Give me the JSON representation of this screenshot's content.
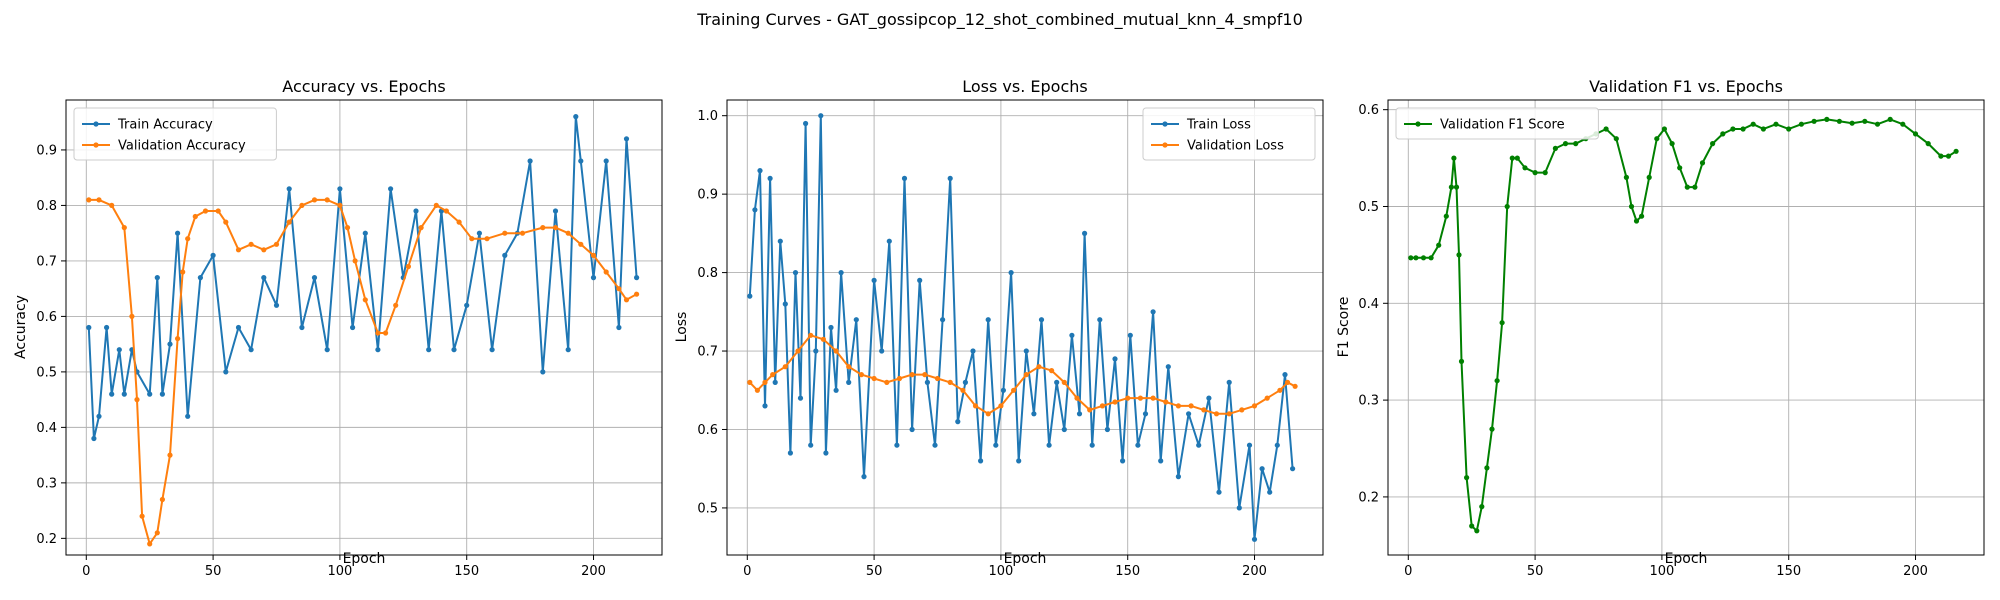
{
  "suptitle": "Training Curves - GAT_gossipcop_12_shot_combined_mutual_knn_4_smpf10",
  "colors": {
    "train": "#1f77b4",
    "validation": "#ff7f0e",
    "f1": "#008000",
    "grid": "#b0b0b0"
  },
  "chart_data": [
    {
      "type": "line",
      "title": "Accuracy vs. Epochs",
      "xlabel": "Epoch",
      "ylabel": "Accuracy",
      "xlim": [
        -8,
        227
      ],
      "ylim": [
        0.17,
        0.99
      ],
      "xticks": [
        0,
        50,
        100,
        150,
        200
      ],
      "yticks": [
        0.2,
        0.3,
        0.4,
        0.5,
        0.6,
        0.7,
        0.8,
        0.9
      ],
      "grid": true,
      "legend_position": "top-left",
      "series": [
        {
          "name": "Train Accuracy",
          "color": "#1f77b4",
          "x": [
            1,
            3,
            5,
            8,
            10,
            13,
            15,
            18,
            20,
            25,
            28,
            30,
            33,
            36,
            40,
            45,
            50,
            55,
            60,
            65,
            70,
            75,
            80,
            85,
            90,
            95,
            100,
            105,
            110,
            115,
            120,
            125,
            130,
            135,
            140,
            145,
            150,
            155,
            160,
            165,
            170,
            175,
            180,
            185,
            190,
            193,
            195,
            200,
            205,
            210,
            213,
            217
          ],
          "y": [
            0.58,
            0.38,
            0.42,
            0.58,
            0.46,
            0.54,
            0.46,
            0.54,
            0.5,
            0.46,
            0.67,
            0.46,
            0.55,
            0.75,
            0.42,
            0.67,
            0.71,
            0.5,
            0.58,
            0.54,
            0.67,
            0.62,
            0.83,
            0.58,
            0.67,
            0.54,
            0.83,
            0.58,
            0.75,
            0.54,
            0.83,
            0.67,
            0.79,
            0.54,
            0.79,
            0.54,
            0.62,
            0.75,
            0.54,
            0.71,
            0.75,
            0.88,
            0.5,
            0.79,
            0.54,
            0.96,
            0.88,
            0.67,
            0.88,
            0.58,
            0.92,
            0.67
          ]
        },
        {
          "name": "Validation Accuracy",
          "color": "#ff7f0e",
          "x": [
            1,
            5,
            10,
            15,
            18,
            20,
            22,
            25,
            28,
            30,
            33,
            36,
            38,
            40,
            43,
            47,
            52,
            55,
            60,
            65,
            70,
            75,
            80,
            85,
            90,
            95,
            100,
            103,
            106,
            110,
            115,
            118,
            122,
            127,
            132,
            138,
            142,
            147,
            152,
            158,
            165,
            172,
            180,
            185,
            190,
            195,
            200,
            205,
            210,
            213,
            217
          ],
          "y": [
            0.81,
            0.81,
            0.8,
            0.76,
            0.6,
            0.45,
            0.24,
            0.19,
            0.21,
            0.27,
            0.35,
            0.56,
            0.68,
            0.74,
            0.78,
            0.79,
            0.79,
            0.77,
            0.72,
            0.73,
            0.72,
            0.73,
            0.77,
            0.8,
            0.81,
            0.81,
            0.8,
            0.76,
            0.7,
            0.63,
            0.57,
            0.57,
            0.62,
            0.69,
            0.76,
            0.8,
            0.79,
            0.77,
            0.74,
            0.74,
            0.75,
            0.75,
            0.76,
            0.76,
            0.75,
            0.73,
            0.71,
            0.68,
            0.65,
            0.63,
            0.64
          ]
        }
      ]
    },
    {
      "type": "line",
      "title": "Loss vs. Epochs",
      "xlabel": "Epoch",
      "ylabel": "Loss",
      "xlim": [
        -8,
        227
      ],
      "ylim": [
        0.44,
        1.02
      ],
      "xticks": [
        0,
        50,
        100,
        150,
        200
      ],
      "yticks": [
        0.5,
        0.6,
        0.7,
        0.8,
        0.9,
        1.0
      ],
      "grid": true,
      "legend_position": "top-right",
      "series": [
        {
          "name": "Train Loss",
          "color": "#1f77b4",
          "x": [
            1,
            3,
            5,
            7,
            9,
            11,
            13,
            15,
            17,
            19,
            21,
            23,
            25,
            27,
            29,
            31,
            33,
            35,
            37,
            40,
            43,
            46,
            50,
            53,
            56,
            59,
            62,
            65,
            68,
            71,
            74,
            77,
            80,
            83,
            86,
            89,
            92,
            95,
            98,
            101,
            104,
            107,
            110,
            113,
            116,
            119,
            122,
            125,
            128,
            131,
            133,
            136,
            139,
            142,
            145,
            148,
            151,
            154,
            157,
            160,
            163,
            166,
            170,
            174,
            178,
            182,
            186,
            190,
            194,
            198,
            200,
            203,
            206,
            209,
            212,
            215
          ],
          "y": [
            0.77,
            0.88,
            0.93,
            0.63,
            0.92,
            0.66,
            0.84,
            0.76,
            0.57,
            0.8,
            0.64,
            0.99,
            0.58,
            0.7,
            1.0,
            0.57,
            0.73,
            0.65,
            0.8,
            0.66,
            0.74,
            0.54,
            0.79,
            0.7,
            0.84,
            0.58,
            0.92,
            0.6,
            0.79,
            0.66,
            0.58,
            0.74,
            0.92,
            0.61,
            0.66,
            0.7,
            0.56,
            0.74,
            0.58,
            0.65,
            0.8,
            0.56,
            0.7,
            0.62,
            0.74,
            0.58,
            0.66,
            0.6,
            0.72,
            0.62,
            0.85,
            0.58,
            0.74,
            0.6,
            0.69,
            0.56,
            0.72,
            0.58,
            0.62,
            0.75,
            0.56,
            0.68,
            0.54,
            0.62,
            0.58,
            0.64,
            0.52,
            0.66,
            0.5,
            0.58,
            0.46,
            0.55,
            0.52,
            0.58,
            0.67,
            0.55
          ]
        },
        {
          "name": "Validation Loss",
          "color": "#ff7f0e",
          "x": [
            1,
            4,
            7,
            10,
            15,
            20,
            25,
            30,
            35,
            40,
            45,
            50,
            55,
            60,
            65,
            70,
            75,
            80,
            85,
            90,
            95,
            100,
            105,
            110,
            115,
            120,
            125,
            130,
            135,
            140,
            145,
            150,
            155,
            160,
            165,
            170,
            175,
            180,
            185,
            190,
            195,
            200,
            205,
            210,
            213,
            216
          ],
          "y": [
            0.66,
            0.65,
            0.66,
            0.67,
            0.68,
            0.7,
            0.72,
            0.715,
            0.7,
            0.68,
            0.67,
            0.665,
            0.66,
            0.665,
            0.67,
            0.67,
            0.665,
            0.66,
            0.65,
            0.63,
            0.62,
            0.63,
            0.65,
            0.67,
            0.68,
            0.675,
            0.66,
            0.64,
            0.625,
            0.63,
            0.635,
            0.64,
            0.64,
            0.64,
            0.635,
            0.63,
            0.63,
            0.625,
            0.62,
            0.62,
            0.625,
            0.63,
            0.64,
            0.65,
            0.66,
            0.655
          ]
        }
      ]
    },
    {
      "type": "line",
      "title": "Validation F1 vs. Epochs",
      "xlabel": "Epoch",
      "ylabel": "F1 Score",
      "xlim": [
        -8,
        227
      ],
      "ylim": [
        0.14,
        0.61
      ],
      "xticks": [
        0,
        50,
        100,
        150,
        200
      ],
      "yticks": [
        0.2,
        0.3,
        0.4,
        0.5,
        0.6
      ],
      "grid": true,
      "legend_position": "top-left",
      "series": [
        {
          "name": "Validation F1 Score",
          "color": "#008000",
          "x": [
            1,
            3,
            6,
            9,
            12,
            15,
            17,
            18,
            19,
            20,
            21,
            23,
            25,
            27,
            29,
            31,
            33,
            35,
            37,
            39,
            41,
            43,
            46,
            50,
            54,
            58,
            62,
            66,
            70,
            74,
            78,
            82,
            86,
            88,
            90,
            92,
            95,
            98,
            101,
            104,
            107,
            110,
            113,
            116,
            120,
            124,
            128,
            132,
            136,
            140,
            145,
            150,
            155,
            160,
            165,
            170,
            175,
            180,
            185,
            190,
            195,
            200,
            205,
            210,
            213,
            216
          ],
          "y": [
            0.447,
            0.447,
            0.447,
            0.447,
            0.46,
            0.49,
            0.52,
            0.55,
            0.52,
            0.45,
            0.34,
            0.22,
            0.17,
            0.165,
            0.19,
            0.23,
            0.27,
            0.32,
            0.38,
            0.5,
            0.55,
            0.55,
            0.54,
            0.535,
            0.535,
            0.56,
            0.565,
            0.565,
            0.57,
            0.575,
            0.58,
            0.57,
            0.53,
            0.5,
            0.485,
            0.49,
            0.53,
            0.57,
            0.58,
            0.565,
            0.54,
            0.52,
            0.52,
            0.545,
            0.565,
            0.575,
            0.58,
            0.58,
            0.585,
            0.58,
            0.585,
            0.58,
            0.585,
            0.588,
            0.59,
            0.588,
            0.586,
            0.588,
            0.585,
            0.59,
            0.585,
            0.575,
            0.565,
            0.552,
            0.552,
            0.557
          ]
        }
      ]
    }
  ]
}
